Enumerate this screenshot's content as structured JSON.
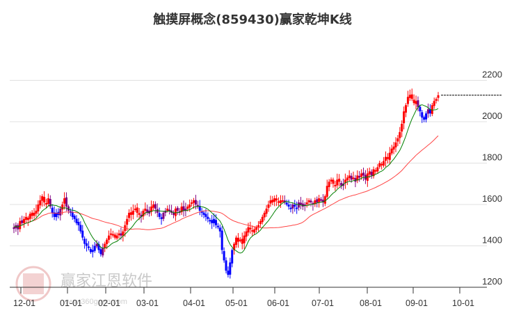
{
  "title": "触摸屏概念(859430)赢家乾坤K线",
  "watermark": {
    "name": "赢家江恩软件",
    "url": "www.360gann.com",
    "seal": [
      "江",
      "赢",
      "恩",
      "家"
    ]
  },
  "colors": {
    "up": "#ff0000",
    "down": "#0000ff",
    "neutral": "#800080",
    "ma_short": "#008000",
    "ma_long": "#ff4444",
    "grid": "#e0e0e0",
    "axis": "#333333",
    "last_price_line": "#000000"
  },
  "chart_data": {
    "type": "candlestick",
    "title": "触摸屏概念(859430)赢家乾坤K线",
    "xlabel": "",
    "ylabel": "",
    "ylim": [
      1200,
      2200
    ],
    "y_ticks": [
      2200,
      2000,
      1800,
      1600,
      1400,
      1200
    ],
    "x_ticks": [
      "12-01",
      "01-01",
      "02-01",
      "03-01",
      "04-01",
      "05-01",
      "06-01",
      "07-01",
      "08-01",
      "09-01",
      "10-01"
    ],
    "grid": true,
    "last_price": 2128,
    "closes": [
      1490,
      1500,
      1480,
      1520,
      1510,
      1530,
      1540,
      1525,
      1555,
      1545,
      1560,
      1570,
      1600,
      1620,
      1640,
      1610,
      1600,
      1630,
      1590,
      1560,
      1540,
      1560,
      1550,
      1580,
      1600,
      1630,
      1590,
      1570,
      1560,
      1540,
      1530,
      1510,
      1500,
      1470,
      1440,
      1410,
      1400,
      1390,
      1370,
      1380,
      1400,
      1410,
      1380,
      1360,
      1390,
      1410,
      1430,
      1450,
      1460,
      1450,
      1440,
      1450,
      1460,
      1450,
      1470,
      1500,
      1530,
      1560,
      1550,
      1570,
      1580,
      1560,
      1550,
      1540,
      1570,
      1580,
      1560,
      1570,
      1590,
      1600,
      1580,
      1560,
      1540,
      1530,
      1560,
      1570,
      1580,
      1570,
      1560,
      1550,
      1580,
      1570,
      1560,
      1590,
      1570,
      1580,
      1590,
      1600,
      1610,
      1620,
      1600,
      1590,
      1570,
      1560,
      1550,
      1540,
      1530,
      1520,
      1510,
      1530,
      1500,
      1490,
      1470,
      1380,
      1330,
      1280,
      1260,
      1320,
      1380,
      1410,
      1440,
      1420,
      1430,
      1410,
      1450,
      1470,
      1490,
      1480,
      1470,
      1480,
      1490,
      1500,
      1520,
      1540,
      1560,
      1580,
      1600,
      1620,
      1610,
      1630,
      1620,
      1610,
      1620,
      1620,
      1610,
      1600,
      1590,
      1580,
      1600,
      1590,
      1580,
      1610,
      1600,
      1590,
      1600,
      1610,
      1620,
      1610,
      1600,
      1620,
      1610,
      1630,
      1620,
      1610,
      1640,
      1690,
      1710,
      1720,
      1700,
      1690,
      1720,
      1710,
      1690,
      1700,
      1720,
      1730,
      1740,
      1720,
      1730,
      1710,
      1740,
      1730,
      1750,
      1740,
      1720,
      1750,
      1760,
      1740,
      1770,
      1760,
      1780,
      1800,
      1790,
      1810,
      1830,
      1820,
      1850,
      1870,
      1880,
      1900,
      1920,
      1950,
      1990,
      2050,
      2080,
      2120,
      2130,
      2110,
      2090,
      2100,
      2070,
      2050,
      2020,
      2010,
      2040,
      2060,
      2040,
      2080,
      2100,
      2110,
      2128
    ],
    "ma_short_desc": "green short moving average",
    "ma_long_desc": "red long moving average"
  }
}
